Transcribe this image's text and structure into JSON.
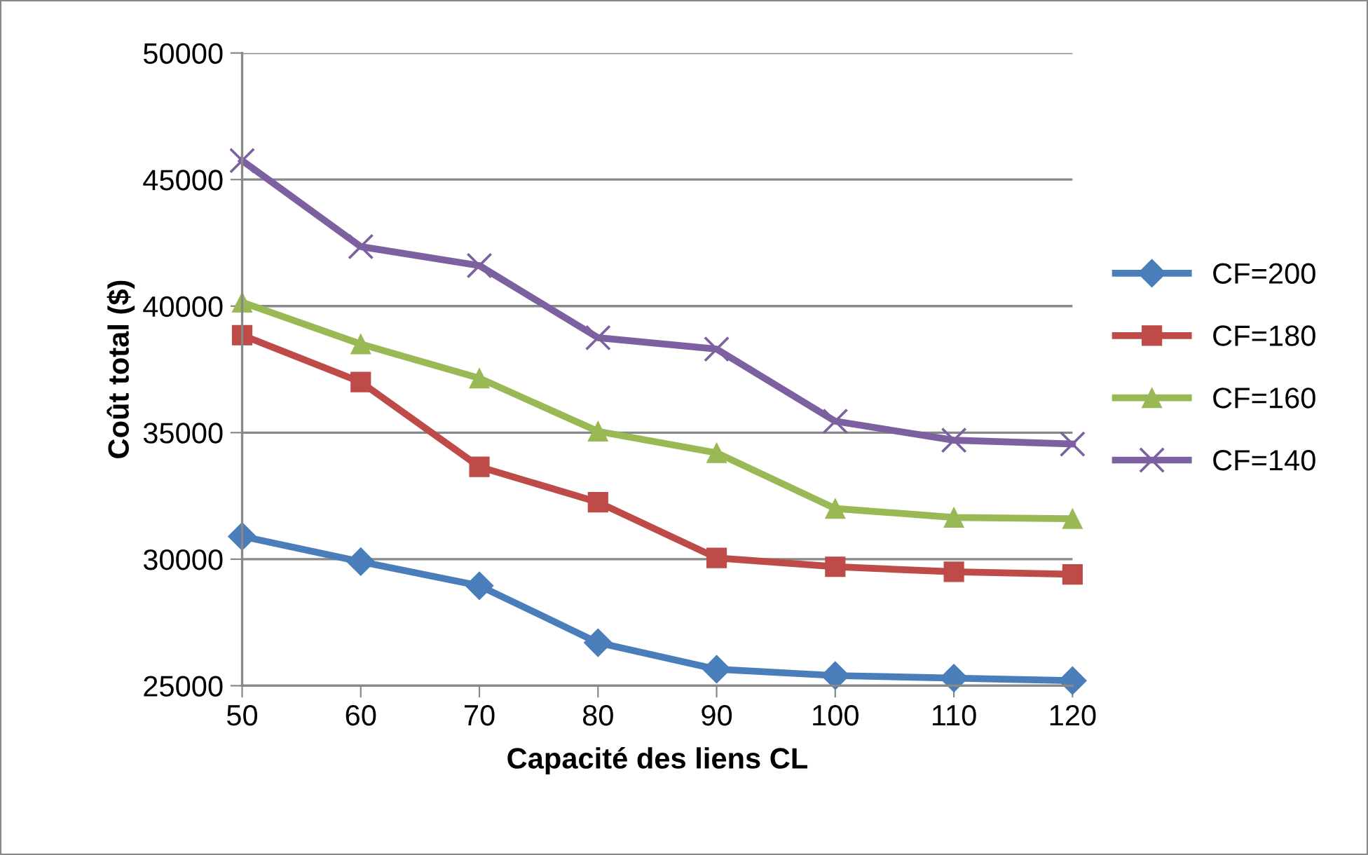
{
  "chart_data": {
    "type": "line",
    "xlabel": "Capacité des liens CL",
    "ylabel": "Coût total ($)",
    "x": [
      50,
      60,
      70,
      80,
      90,
      100,
      110,
      120
    ],
    "xlim": [
      50,
      120
    ],
    "xticks": [
      50,
      60,
      70,
      80,
      90,
      100,
      110,
      120
    ],
    "ylim": [
      25000,
      50000
    ],
    "yticks": [
      25000,
      30000,
      35000,
      40000,
      45000,
      50000
    ],
    "grid": "y",
    "legend": "right",
    "line_style": "solid",
    "series": [
      {
        "name": "CF=200",
        "color": "#4a7ebb",
        "marker": "diamond",
        "values": [
          30900,
          29900,
          28950,
          26700,
          25650,
          25400,
          25300,
          25200
        ]
      },
      {
        "name": "CF=180",
        "color": "#be4b48",
        "marker": "square",
        "values": [
          38850,
          37000,
          33650,
          32250,
          30050,
          29700,
          29500,
          29400
        ]
      },
      {
        "name": "CF=160",
        "color": "#98b954",
        "marker": "triangle",
        "values": [
          40150,
          38500,
          37150,
          35050,
          34200,
          32000,
          31650,
          31600
        ]
      },
      {
        "name": "CF=140",
        "color": "#7d60a0",
        "marker": "cross",
        "values": [
          45750,
          42350,
          41600,
          38750,
          38300,
          35450,
          34700,
          34550
        ]
      }
    ]
  }
}
